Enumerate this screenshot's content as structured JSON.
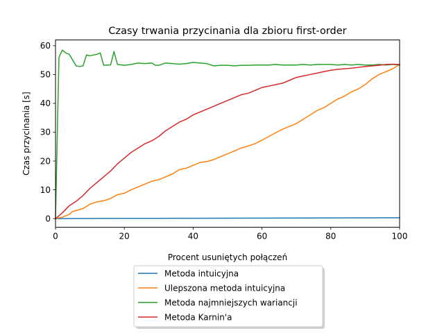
{
  "chart_data": {
    "type": "line",
    "title": "Czasy trwania przycinania dla zbioru first-order",
    "xlabel": "Procent usuniętych połączeń",
    "ylabel": "Czas przycinania [s]",
    "xlim": [
      0,
      100
    ],
    "ylim": [
      -3,
      62
    ],
    "xticks": [
      0,
      20,
      40,
      60,
      80,
      100
    ],
    "yticks": [
      0,
      10,
      20,
      30,
      40,
      50,
      60
    ],
    "grid": false,
    "legend_position": "below-center",
    "series": [
      {
        "name": "Metoda intuicyjna",
        "color": "#1f77b4",
        "x": [
          0,
          10,
          20,
          30,
          40,
          50,
          60,
          70,
          80,
          90,
          100
        ],
        "y": [
          0,
          0.05,
          0.08,
          0.1,
          0.13,
          0.16,
          0.19,
          0.22,
          0.25,
          0.28,
          0.3
        ]
      },
      {
        "name": "Ulepszona metoda intuicyjna",
        "color": "#ff7f0e",
        "x": [
          0,
          2,
          4,
          5,
          6,
          8,
          10,
          12,
          14,
          16,
          18,
          20,
          22,
          24,
          26,
          28,
          30,
          32,
          34,
          36,
          38,
          40,
          42,
          44,
          46,
          48,
          50,
          52,
          54,
          56,
          58,
          60,
          62,
          64,
          66,
          68,
          70,
          72,
          74,
          76,
          78,
          80,
          82,
          84,
          86,
          88,
          90,
          92,
          94,
          96,
          98,
          100
        ],
        "y": [
          0,
          0.5,
          1.5,
          2.5,
          2.8,
          3.5,
          5,
          5.8,
          6.2,
          7,
          8.3,
          8.8,
          10,
          11,
          12,
          13,
          13.5,
          14.5,
          15.5,
          17,
          17.5,
          18.5,
          19.5,
          19.8,
          20.5,
          21.5,
          22.5,
          23.5,
          24.5,
          25.2,
          26,
          27.2,
          28.5,
          29.8,
          31,
          32,
          33,
          34.5,
          36,
          37.5,
          38.5,
          40,
          41.5,
          42.5,
          44,
          45,
          46.5,
          48.5,
          50,
          51,
          52,
          53.5
        ]
      },
      {
        "name": "Metoda najmniejszych wariancji",
        "color": "#2ca02c",
        "x": [
          0,
          1,
          2,
          3,
          4,
          5,
          6,
          7,
          8,
          9,
          10,
          11,
          12,
          13,
          14,
          15,
          16,
          17,
          18,
          20,
          22,
          24,
          26,
          28,
          29,
          30,
          32,
          34,
          36,
          38,
          40,
          42,
          44,
          46,
          48,
          50,
          52,
          54,
          56,
          58,
          60,
          62,
          64,
          66,
          68,
          70,
          72,
          74,
          76,
          78,
          80,
          82,
          84,
          86,
          88,
          90,
          92,
          94,
          96,
          98,
          100
        ],
        "y": [
          0,
          56,
          58.5,
          57.5,
          57,
          55,
          53,
          52.8,
          53,
          56.8,
          56.5,
          56.8,
          57,
          57.5,
          53.2,
          53.3,
          53.3,
          58,
          53.5,
          53.2,
          53.5,
          54,
          53.8,
          54,
          53.2,
          53.2,
          54,
          53.8,
          53.6,
          53.8,
          54.2,
          54,
          53.8,
          53,
          53.2,
          53.2,
          53,
          53.2,
          53.2,
          53.3,
          53.3,
          53.3,
          53.5,
          53.3,
          53.3,
          53.3,
          53.5,
          53.3,
          53.5,
          53.5,
          53.5,
          53.3,
          53.5,
          53.3,
          53.5,
          53.3,
          53.3,
          53.5,
          53.3,
          53.5,
          53.3
        ]
      },
      {
        "name": "Metoda Karnin'a",
        "color": "#d62728",
        "x": [
          0,
          2,
          4,
          6,
          8,
          10,
          12,
          14,
          16,
          18,
          20,
          22,
          24,
          26,
          28,
          30,
          32,
          34,
          36,
          38,
          40,
          42,
          44,
          46,
          48,
          50,
          52,
          54,
          56,
          58,
          60,
          62,
          64,
          66,
          68,
          70,
          72,
          74,
          76,
          78,
          80,
          82,
          84,
          86,
          88,
          90,
          92,
          94,
          96,
          98,
          100
        ],
        "y": [
          0,
          2,
          4.5,
          6,
          8,
          10.5,
          12.5,
          14.5,
          16.5,
          19,
          21,
          23,
          24.5,
          26,
          27,
          28.5,
          30.5,
          32,
          33.5,
          34.5,
          36,
          37,
          38,
          39,
          40,
          41,
          42,
          43,
          43.5,
          44.5,
          45.5,
          46,
          46.5,
          47,
          48,
          49,
          49.5,
          50,
          50.5,
          51,
          51.5,
          51.8,
          52,
          52.2,
          52.5,
          52.8,
          53,
          53.2,
          53.5,
          53.6,
          53.5
        ]
      }
    ]
  }
}
